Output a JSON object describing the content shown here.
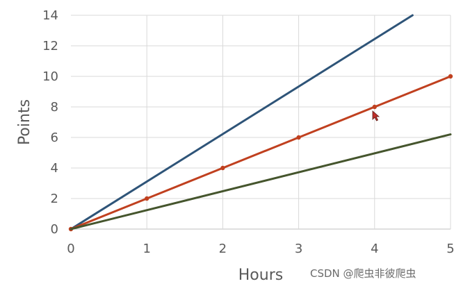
{
  "chart_data": {
    "type": "line",
    "xlabel": "Hours",
    "ylabel": "Points",
    "xlim": [
      0,
      5
    ],
    "ylim": [
      0,
      14
    ],
    "grid": true,
    "x_ticks": [
      "0",
      "1",
      "2",
      "3",
      "4",
      "5"
    ],
    "y_ticks": [
      "0",
      "2",
      "4",
      "6",
      "8",
      "10",
      "12",
      "14"
    ],
    "series": [
      {
        "color": "#2e5478",
        "markers": false,
        "x": [
          0,
          4.5
        ],
        "y": [
          0,
          14
        ]
      },
      {
        "color": "#c0401f",
        "markers": true,
        "x": [
          0,
          1,
          2,
          3,
          4,
          5
        ],
        "y": [
          0,
          2,
          4,
          6,
          8,
          10
        ]
      },
      {
        "color": "#45552d",
        "markers": false,
        "x": [
          0,
          5
        ],
        "y": [
          0,
          6.2
        ]
      }
    ]
  },
  "watermark": "CSDN @爬虫非彼爬虫"
}
